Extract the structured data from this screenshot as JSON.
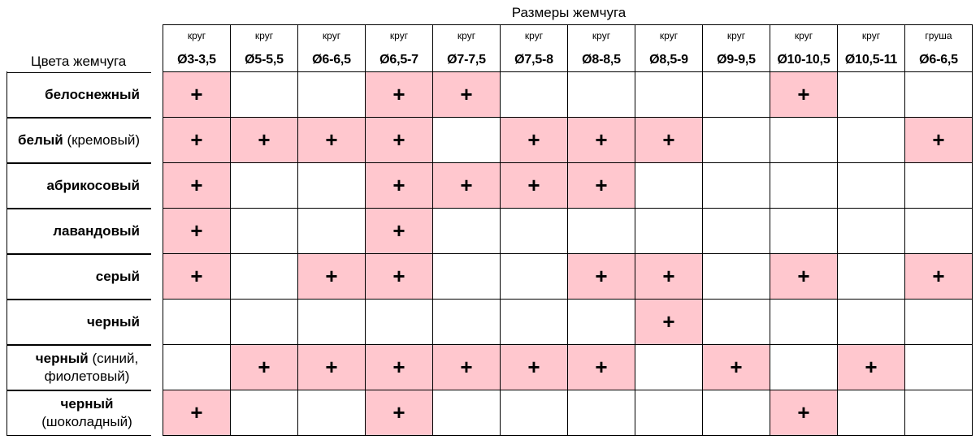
{
  "headers": {
    "sizes_title": "Размеры жемчуга",
    "colors_title": "Цвета жемчуга"
  },
  "columns": [
    {
      "shape": "круг",
      "size": "Ø3-3,5"
    },
    {
      "shape": "круг",
      "size": "Ø5-5,5"
    },
    {
      "shape": "круг",
      "size": "Ø6-6,5"
    },
    {
      "shape": "круг",
      "size": "Ø6,5-7"
    },
    {
      "shape": "круг",
      "size": "Ø7-7,5"
    },
    {
      "shape": "круг",
      "size": "Ø7,5-8"
    },
    {
      "shape": "круг",
      "size": "Ø8-8,5"
    },
    {
      "shape": "круг",
      "size": "Ø8,5-9"
    },
    {
      "shape": "круг",
      "size": "Ø9-9,5"
    },
    {
      "shape": "круг",
      "size": "Ø10-10,5"
    },
    {
      "shape": "круг",
      "size": "Ø10,5-11"
    },
    {
      "shape": "груша",
      "size": "Ø6-6,5"
    }
  ],
  "mark": "+",
  "rows": [
    {
      "name_bold": "белоснежный",
      "name_extra": "",
      "marks": [
        1,
        0,
        0,
        1,
        1,
        0,
        0,
        0,
        0,
        1,
        0,
        0
      ]
    },
    {
      "name_bold": "белый",
      "name_extra": " (кремовый)",
      "marks": [
        1,
        1,
        1,
        1,
        0,
        1,
        1,
        1,
        0,
        0,
        0,
        1
      ]
    },
    {
      "name_bold": "абрикосовый",
      "name_extra": "",
      "marks": [
        1,
        0,
        0,
        1,
        1,
        1,
        1,
        0,
        0,
        0,
        0,
        0
      ]
    },
    {
      "name_bold": "лавандовый",
      "name_extra": "",
      "marks": [
        1,
        0,
        0,
        1,
        0,
        0,
        0,
        0,
        0,
        0,
        0,
        0
      ]
    },
    {
      "name_bold": "серый",
      "name_extra": "",
      "marks": [
        1,
        0,
        1,
        1,
        0,
        0,
        1,
        1,
        0,
        1,
        0,
        1
      ]
    },
    {
      "name_bold": "черный",
      "name_extra": "",
      "marks": [
        0,
        0,
        0,
        0,
        0,
        0,
        0,
        1,
        0,
        0,
        0,
        0
      ]
    },
    {
      "name_bold": "черный",
      "name_extra": " (синий, фиолетовый)",
      "marks": [
        0,
        1,
        1,
        1,
        1,
        1,
        1,
        0,
        1,
        0,
        1,
        0
      ]
    },
    {
      "name_bold": "черный",
      "name_extra": " (шоколадный)",
      "marks": [
        1,
        0,
        0,
        1,
        0,
        0,
        0,
        0,
        0,
        1,
        0,
        0
      ]
    }
  ],
  "colors": {
    "marked_cell": "#ffc7ce",
    "border": "#000000"
  }
}
